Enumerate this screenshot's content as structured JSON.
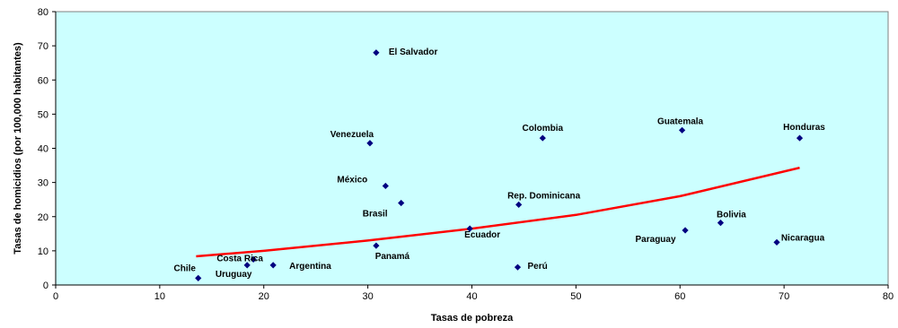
{
  "chart_data": {
    "type": "scatter",
    "xlabel": "Tasas de pobreza",
    "ylabel": "Tasas de homicidios (por 100,000 habitantes)",
    "xlim": [
      0,
      80
    ],
    "ylim": [
      0,
      80
    ],
    "xticks": [
      0,
      10,
      20,
      30,
      40,
      50,
      60,
      70,
      80
    ],
    "yticks": [
      0,
      10,
      20,
      30,
      40,
      50,
      60,
      70,
      80
    ],
    "grid": false,
    "legend": "none",
    "colors": {
      "plot_background": "#CCFFFF",
      "point": "#000080",
      "trendline": "#FF0000"
    },
    "points": [
      {
        "label": "El Salvador",
        "x": 30.8,
        "y": 68
      },
      {
        "label": "Venezuela",
        "x": 30.2,
        "y": 41.5
      },
      {
        "label": "México",
        "x": 31.7,
        "y": 29
      },
      {
        "label": "Brasil",
        "x": 33.2,
        "y": 24
      },
      {
        "label": "Colombia",
        "x": 46.8,
        "y": 43
      },
      {
        "label": "Guatemala",
        "x": 60.2,
        "y": 45.3
      },
      {
        "label": "Honduras",
        "x": 71.5,
        "y": 43
      },
      {
        "label": "Rep. Dominicana",
        "x": 44.5,
        "y": 23.5
      },
      {
        "label": "Ecuador",
        "x": 39.8,
        "y": 16.5
      },
      {
        "label": "Bolivia",
        "x": 63.9,
        "y": 18.2
      },
      {
        "label": "Paraguay",
        "x": 60.5,
        "y": 16
      },
      {
        "label": "Nicaragua",
        "x": 69.3,
        "y": 12.5
      },
      {
        "label": "Panamá",
        "x": 30.8,
        "y": 11.5
      },
      {
        "label": "Costa Rica",
        "x": 19,
        "y": 7.5
      },
      {
        "label": "Uruguay",
        "x": 18.4,
        "y": 5.8
      },
      {
        "label": "Argentina",
        "x": 20.9,
        "y": 5.8
      },
      {
        "label": "Perú",
        "x": 44.4,
        "y": 5.2
      },
      {
        "label": "Chile",
        "x": 13.7,
        "y": 2
      }
    ],
    "trendline": {
      "type": "exponential",
      "x": [
        13.5,
        20,
        30,
        40,
        50,
        60,
        71.5
      ],
      "y": [
        8.4,
        10,
        13,
        16.5,
        20.5,
        26,
        34.3
      ]
    }
  }
}
